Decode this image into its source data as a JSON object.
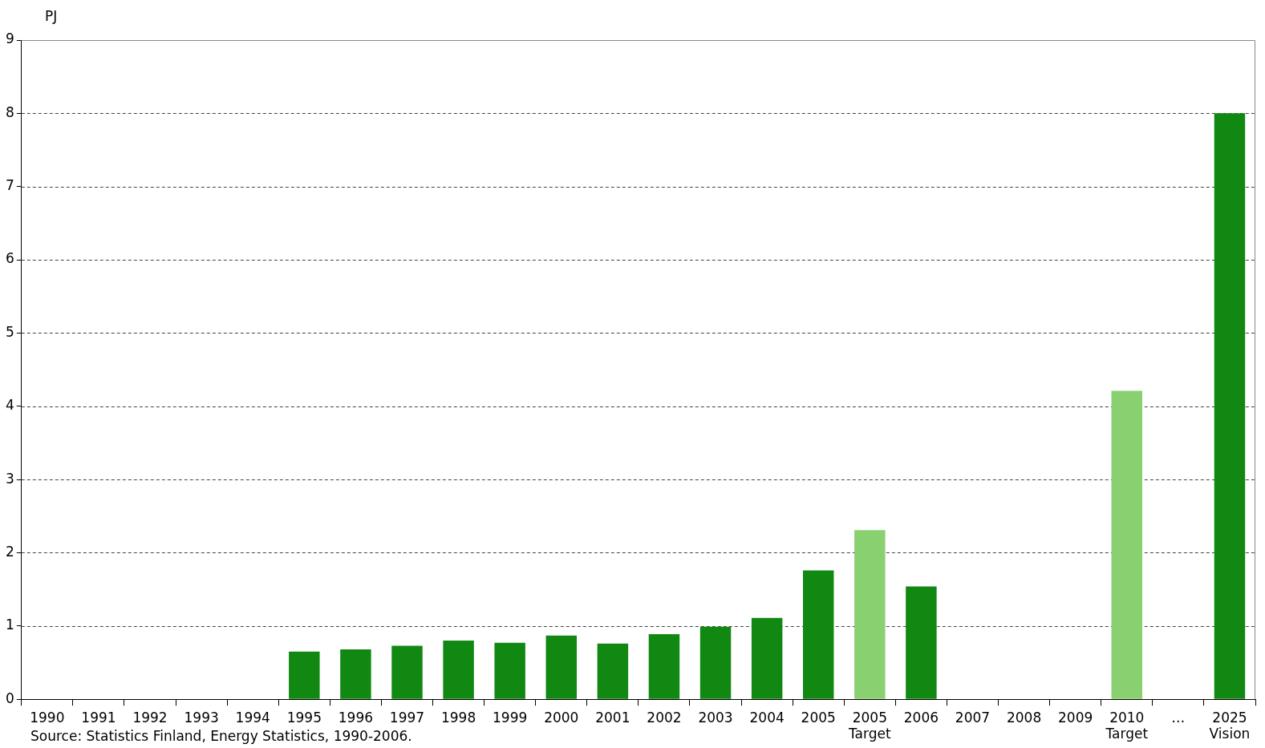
{
  "chart_data": {
    "type": "bar",
    "ylabel": "PJ",
    "categories": [
      "1990",
      "1991",
      "1992",
      "1993",
      "1994",
      "1995",
      "1996",
      "1997",
      "1998",
      "1999",
      "2000",
      "2001",
      "2002",
      "2003",
      "2004",
      "2005",
      "2005\nTarget",
      "2006",
      "2007",
      "2008",
      "2009",
      "2010\nTarget",
      "…",
      "2025\nVision"
    ],
    "values": [
      null,
      null,
      null,
      null,
      null,
      0.65,
      0.68,
      0.73,
      0.8,
      0.77,
      0.87,
      0.76,
      0.89,
      0.99,
      1.11,
      1.76,
      2.31,
      1.54,
      null,
      null,
      null,
      4.21,
      null,
      8.0
    ],
    "colors": [
      "#118811",
      "#118811",
      "#118811",
      "#118811",
      "#118811",
      "#118811",
      "#118811",
      "#118811",
      "#118811",
      "#118811",
      "#118811",
      "#118811",
      "#118811",
      "#118811",
      "#118811",
      "#118811",
      "#88d070",
      "#118811",
      "#118811",
      "#118811",
      "#118811",
      "#88d070",
      "#118811",
      "#118811"
    ],
    "ylim": [
      0,
      9
    ],
    "yticks": [
      0,
      1,
      2,
      3,
      4,
      5,
      6,
      7,
      8,
      9
    ],
    "grid": "y",
    "legend": false,
    "annotations": [
      "Source: Statistics Finland, Energy Statistics, 1990-2006."
    ]
  }
}
